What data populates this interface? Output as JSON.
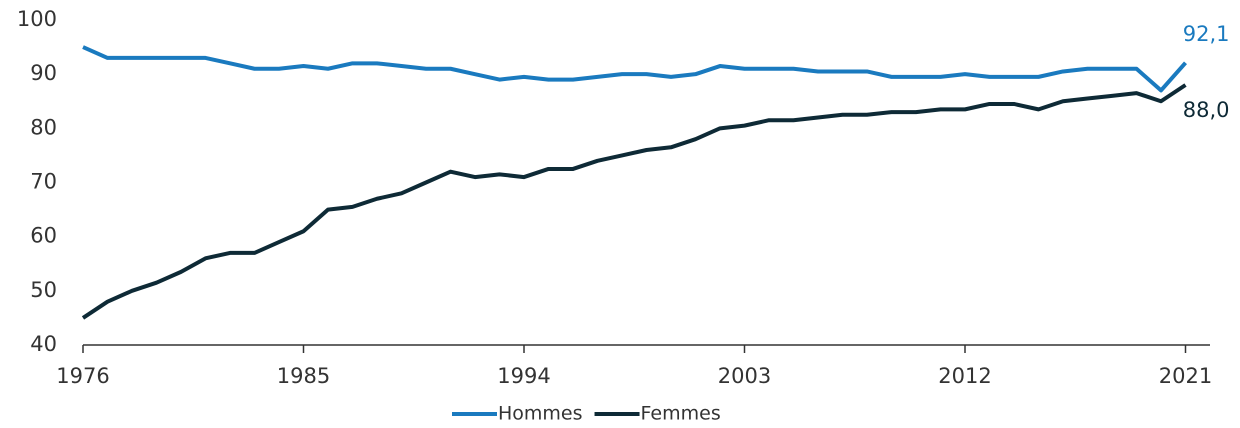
{
  "chart_data": {
    "type": "line",
    "x": [
      1976,
      1977,
      1978,
      1979,
      1980,
      1981,
      1982,
      1983,
      1984,
      1985,
      1986,
      1987,
      1988,
      1989,
      1990,
      1991,
      1992,
      1993,
      1994,
      1995,
      1996,
      1997,
      1998,
      1999,
      2000,
      2001,
      2002,
      2003,
      2004,
      2005,
      2006,
      2007,
      2008,
      2009,
      2010,
      2011,
      2012,
      2013,
      2014,
      2015,
      2016,
      2017,
      2018,
      2019,
      2020,
      2021
    ],
    "series": [
      {
        "name": "Hommes",
        "color": "#1a7abf",
        "end_label": "92,1",
        "values": [
          95,
          93,
          93,
          93,
          93,
          93,
          92,
          91,
          91,
          91.5,
          91,
          92,
          92,
          91.5,
          91,
          91,
          90,
          89,
          89.5,
          89,
          89,
          89.5,
          90,
          90,
          89.5,
          90,
          91.5,
          91,
          91,
          91,
          90.5,
          90.5,
          90.5,
          89.5,
          89.5,
          89.5,
          90,
          89.5,
          89.5,
          89.5,
          90.5,
          91,
          91,
          91,
          87,
          92.1
        ]
      },
      {
        "name": "Femmes",
        "color": "#0e2a36",
        "end_label": "88,0",
        "values": [
          45,
          48,
          50,
          51.5,
          53.5,
          56,
          57,
          57,
          59,
          61,
          65,
          65.5,
          67,
          68,
          70,
          72,
          71,
          71.5,
          71,
          72.5,
          72.5,
          74,
          75,
          76,
          76.5,
          78,
          80,
          80.5,
          81.5,
          81.5,
          82,
          82.5,
          82.5,
          83,
          83,
          83.5,
          83.5,
          84.5,
          84.5,
          83.5,
          85,
          85.5,
          86,
          86.5,
          85,
          88
        ]
      }
    ],
    "xlim": [
      1976,
      2022
    ],
    "xticks": [
      1976,
      1985,
      1994,
      2003,
      2012,
      2021
    ],
    "ylim": [
      40,
      100
    ],
    "yticks": [
      40,
      50,
      60,
      70,
      80,
      90,
      100
    ],
    "legend": "bottom"
  }
}
